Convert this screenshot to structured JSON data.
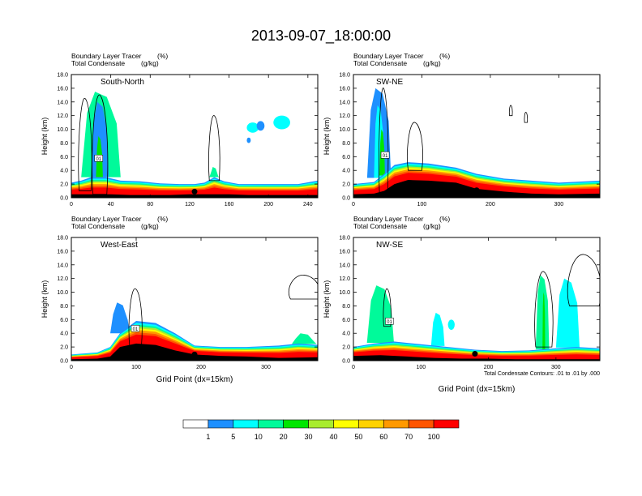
{
  "title": "2013-09-07_18:00:00",
  "panel_subtitles": [
    "Boundary Layer Tracer",
    "(%)",
    "Total Condensate",
    "(g/kg)"
  ],
  "ylabel": "Height (km)",
  "xlabel": "Grid Point (dx=15km)",
  "contour_note": "Total Condensate Contours: .01 to .01 by .000",
  "contour_label": "01",
  "colors": {
    "levels": [
      "#ffffff",
      "#1e90ff",
      "#00ffff",
      "#00fa9a",
      "#00e600",
      "#a8ec2e",
      "#ffff00",
      "#ffd200",
      "#ff9900",
      "#ff5500",
      "#ff0000"
    ],
    "terrain": "#000000"
  },
  "colorbar": {
    "labels": [
      "1",
      "5",
      "10",
      "20",
      "30",
      "40",
      "50",
      "60",
      "70",
      "100"
    ]
  },
  "chart_data": [
    {
      "type": "heatmap",
      "name": "South-North",
      "xlim": [
        0,
        250
      ],
      "ylim": [
        0,
        18
      ],
      "xticks": [
        "0",
        "40",
        "80",
        "120",
        "160",
        "200",
        "240"
      ],
      "yticks": [
        "0.0",
        "2.0",
        "4.0",
        "6.0",
        "8.0",
        "10.0",
        "12.0",
        "14.0",
        "16.0",
        "18.0"
      ],
      "terrain": [
        [
          0,
          0.5
        ],
        [
          20,
          0.5
        ],
        [
          40,
          0.5
        ],
        [
          60,
          0.4
        ],
        [
          80,
          0.4
        ],
        [
          100,
          0.4
        ],
        [
          120,
          0.5
        ],
        [
          140,
          0.5
        ],
        [
          160,
          0.5
        ],
        [
          180,
          0.4
        ],
        [
          200,
          0.4
        ],
        [
          220,
          0.4
        ],
        [
          250,
          0.4
        ]
      ],
      "pbl": [
        [
          0,
          2.2
        ],
        [
          10,
          2.5
        ],
        [
          20,
          3.0
        ],
        [
          35,
          3.0
        ],
        [
          50,
          2.5
        ],
        [
          70,
          2.4
        ],
        [
          90,
          2.1
        ],
        [
          110,
          2.0
        ],
        [
          125,
          2.0
        ],
        [
          135,
          2.2
        ],
        [
          145,
          3.0
        ],
        [
          155,
          2.4
        ],
        [
          170,
          2.0
        ],
        [
          200,
          2.0
        ],
        [
          230,
          2.0
        ],
        [
          250,
          2.5
        ]
      ],
      "convection": [
        {
          "x": [
            10,
            50
          ],
          "top": 15.5,
          "fill": "#00fa9a"
        },
        {
          "x": [
            20,
            38
          ],
          "top": 14.0,
          "fill": "#1e90ff"
        },
        {
          "x": [
            25,
            32
          ],
          "top": 9.0,
          "fill": "#00e600"
        },
        {
          "x": [
            140,
            150
          ],
          "top": 4.5,
          "fill": "#00fa9a"
        }
      ],
      "patches": [
        {
          "x": [
            178,
            190
          ],
          "y": [
            9.5,
            11.0
          ],
          "fill": "#00ffff"
        },
        {
          "x": [
            188,
            196
          ],
          "y": [
            9.8,
            11.2
          ],
          "fill": "#1e90ff"
        },
        {
          "x": [
            205,
            222
          ],
          "y": [
            10.0,
            12.0
          ],
          "fill": "#00ffff"
        },
        {
          "x": [
            178,
            182
          ],
          "y": [
            8.0,
            8.8
          ],
          "fill": "#1e90ff"
        }
      ],
      "cloud_contours": [
        {
          "x": [
            22,
            36
          ],
          "y": [
            0.5,
            15.0
          ]
        },
        {
          "x": [
            8,
            20
          ],
          "y": [
            1.0,
            14.5
          ]
        },
        {
          "x": [
            140,
            150
          ],
          "y": [
            2.5,
            12.0
          ]
        }
      ],
      "dot": {
        "x": 125,
        "y": 0.9
      }
    },
    {
      "type": "heatmap",
      "name": "SW-NE",
      "xlim": [
        0,
        360
      ],
      "ylim": [
        0,
        18
      ],
      "xticks": [
        "0",
        "100",
        "200",
        "300"
      ],
      "yticks": [
        "0.0",
        "2.0",
        "4.0",
        "6.0",
        "8.0",
        "10.0",
        "12.0",
        "14.0",
        "16.0",
        "18.0"
      ],
      "terrain": [
        [
          0,
          0.5
        ],
        [
          30,
          0.6
        ],
        [
          45,
          1.0
        ],
        [
          60,
          2.0
        ],
        [
          80,
          2.6
        ],
        [
          110,
          2.5
        ],
        [
          150,
          2.2
        ],
        [
          180,
          1.3
        ],
        [
          220,
          0.9
        ],
        [
          260,
          0.6
        ],
        [
          300,
          0.5
        ],
        [
          360,
          0.6
        ]
      ],
      "pbl": [
        [
          0,
          2.0
        ],
        [
          30,
          2.3
        ],
        [
          45,
          3.5
        ],
        [
          60,
          4.8
        ],
        [
          80,
          5.2
        ],
        [
          110,
          5.0
        ],
        [
          150,
          4.4
        ],
        [
          180,
          3.5
        ],
        [
          220,
          2.8
        ],
        [
          260,
          2.5
        ],
        [
          300,
          2.2
        ],
        [
          360,
          2.5
        ]
      ],
      "convection": [
        {
          "x": [
            20,
            55
          ],
          "top": 16.0,
          "fill": "#1e90ff"
        },
        {
          "x": [
            30,
            45
          ],
          "top": 13.5,
          "fill": "#00ffff"
        },
        {
          "x": [
            38,
            46
          ],
          "top": 10.0,
          "fill": "#00e600"
        }
      ],
      "patches": [],
      "cloud_contours": [
        {
          "x": [
            38,
            50
          ],
          "y": [
            0.8,
            16.0
          ]
        },
        {
          "x": [
            80,
            100
          ],
          "y": [
            4.0,
            11.0
          ]
        },
        {
          "x": [
            228,
            232
          ],
          "y": [
            12.0,
            13.5
          ]
        },
        {
          "x": [
            250,
            254
          ],
          "y": [
            11.0,
            12.5
          ]
        }
      ],
      "dot": {
        "x": 180,
        "y": 1.1
      }
    },
    {
      "type": "heatmap",
      "name": "West-East",
      "xlim": [
        0,
        380
      ],
      "ylim": [
        0,
        18
      ],
      "xticks": [
        "0",
        "100",
        "200",
        "300"
      ],
      "yticks": [
        "0.0",
        "2.0",
        "4.0",
        "6.0",
        "8.0",
        "10.0",
        "12.0",
        "14.0",
        "16.0",
        "18.0"
      ],
      "terrain": [
        [
          0,
          0.2
        ],
        [
          40,
          0.3
        ],
        [
          60,
          0.6
        ],
        [
          75,
          2.0
        ],
        [
          100,
          2.5
        ],
        [
          130,
          2.3
        ],
        [
          160,
          1.5
        ],
        [
          190,
          0.9
        ],
        [
          230,
          0.7
        ],
        [
          270,
          0.6
        ],
        [
          320,
          0.4
        ],
        [
          380,
          0.5
        ]
      ],
      "pbl": [
        [
          0,
          0.9
        ],
        [
          40,
          1.2
        ],
        [
          60,
          2.0
        ],
        [
          75,
          4.0
        ],
        [
          100,
          5.8
        ],
        [
          130,
          5.5
        ],
        [
          160,
          4.0
        ],
        [
          190,
          2.2
        ],
        [
          230,
          2.0
        ],
        [
          270,
          2.0
        ],
        [
          320,
          2.2
        ],
        [
          350,
          2.5
        ],
        [
          380,
          2.3
        ]
      ],
      "convection": [
        {
          "x": [
            60,
            90
          ],
          "top": 8.5,
          "fill": "#1e90ff"
        },
        {
          "x": [
            340,
            378
          ],
          "top": 4.0,
          "fill": "#00fa9a"
        }
      ],
      "patches": [],
      "cloud_contours": [
        {
          "x": [
            90,
            108
          ],
          "y": [
            2.0,
            10.5
          ]
        },
        {
          "x": [
            338,
            380
          ],
          "y": [
            9.0,
            12.5
          ]
        }
      ],
      "dot": {
        "x": 190,
        "y": 0.9
      }
    },
    {
      "type": "heatmap",
      "name": "NW-SE",
      "xlim": [
        0,
        365
      ],
      "ylim": [
        0,
        18
      ],
      "xticks": [
        "0",
        "100",
        "200",
        "300"
      ],
      "yticks": [
        "0.0",
        "2.0",
        "4.0",
        "6.0",
        "8.0",
        "10.0",
        "12.0",
        "14.0",
        "16.0",
        "18.0"
      ],
      "terrain": [
        [
          0,
          0.7
        ],
        [
          40,
          0.8
        ],
        [
          80,
          0.6
        ],
        [
          120,
          0.4
        ],
        [
          160,
          0.3
        ],
        [
          200,
          0.3
        ],
        [
          240,
          0.2
        ],
        [
          280,
          0.2
        ],
        [
          320,
          0.2
        ],
        [
          365,
          0.2
        ]
      ],
      "pbl": [
        [
          0,
          2.0
        ],
        [
          30,
          2.5
        ],
        [
          60,
          2.8
        ],
        [
          100,
          2.4
        ],
        [
          140,
          2.0
        ],
        [
          180,
          1.6
        ],
        [
          220,
          1.4
        ],
        [
          260,
          1.5
        ],
        [
          300,
          1.8
        ],
        [
          330,
          2.0
        ],
        [
          365,
          1.8
        ]
      ],
      "convection": [
        {
          "x": [
            20,
            60
          ],
          "top": 11.0,
          "fill": "#00fa9a"
        },
        {
          "x": [
            115,
            135
          ],
          "top": 7.0,
          "fill": "#00ffff"
        },
        {
          "x": [
            270,
            290
          ],
          "top": 12.5,
          "fill": "#00fa9a"
        },
        {
          "x": [
            300,
            335
          ],
          "top": 12.0,
          "fill": "#00ffff"
        },
        {
          "x": [
            280,
            284
          ],
          "top": 10.0,
          "fill": "#00e600"
        }
      ],
      "patches": [
        {
          "x": [
            140,
            150
          ],
          "y": [
            4.5,
            6.0
          ],
          "fill": "#00ffff"
        }
      ],
      "cloud_contours": [
        {
          "x": [
            45,
            55
          ],
          "y": [
            5.0,
            10.5
          ]
        },
        {
          "x": [
            270,
            294
          ],
          "y": [
            2.0,
            13.0
          ]
        },
        {
          "x": [
            320,
            364
          ],
          "y": [
            8.0,
            15.5
          ]
        }
      ],
      "dot": {
        "x": 180,
        "y": 1.0
      }
    }
  ]
}
